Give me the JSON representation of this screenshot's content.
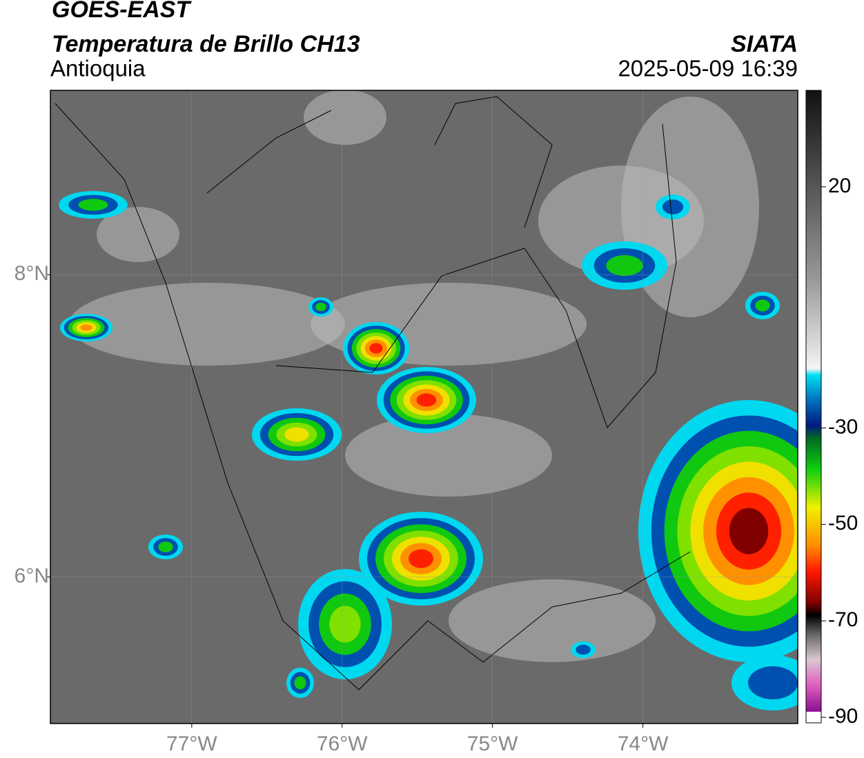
{
  "map": {
    "title": "GOES-EAST",
    "subtitle": "Temperatura de Brillo CH13",
    "region": "Antioquia",
    "source": "SIATA",
    "datetime": "2025-05-09 16:39",
    "xlim": [
      -77.94,
      -72.97
    ],
    "ylim": [
      5.03,
      9.22
    ],
    "xticks": [
      {
        "value": -77,
        "label": "77°W"
      },
      {
        "value": -76,
        "label": "76°W"
      },
      {
        "value": -75,
        "label": "75°W"
      },
      {
        "value": -74,
        "label": "74°W"
      }
    ],
    "yticks": [
      {
        "value": 8,
        "label": "8°N"
      },
      {
        "value": 6,
        "label": "6°N"
      }
    ],
    "grid": true,
    "colorbar": {
      "lim": [
        -90,
        40
      ],
      "ticks": [
        20,
        -30,
        -50,
        -70,
        -90
      ]
    }
  }
}
